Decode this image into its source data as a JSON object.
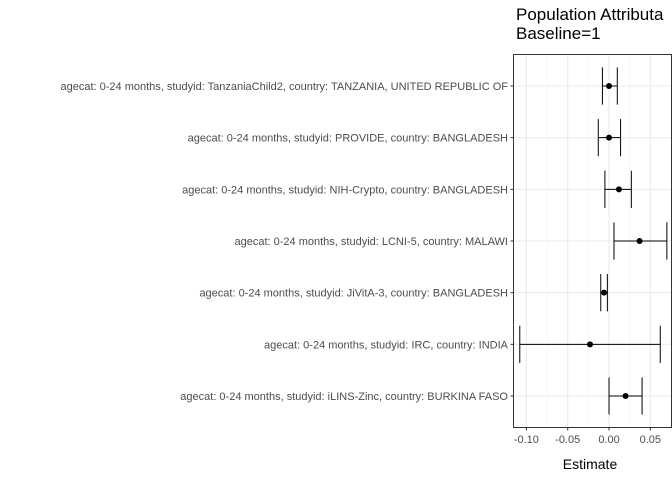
{
  "chart_data": {
    "type": "forest",
    "title": [
      "Population Attributa",
      "Baseline=1"
    ],
    "xlabel": "Estimate",
    "ylabel": "",
    "xlim": [
      -0.115,
      0.075
    ],
    "xticks": [
      -0.1,
      -0.05,
      0.0,
      0.05
    ],
    "xtick_labels": [
      "-0.10",
      "-0.05",
      "0.00",
      "0.05"
    ],
    "grid": true,
    "categories": [
      "agecat: 0-24 months, studyid: TanzaniaChild2, country: TANZANIA, UNITED REPUBLIC OF",
      "agecat: 0-24 months, studyid: PROVIDE, country: BANGLADESH",
      "agecat: 0-24 months, studyid: NIH-Crypto, country: BANGLADESH",
      "agecat: 0-24 months, studyid: LCNI-5, country: MALAWI",
      "agecat: 0-24 months, studyid: JiVitA-3, country: BANGLADESH",
      "agecat: 0-24 months, studyid: IRC, country: INDIA",
      "agecat: 0-24 months, studyid: iLINS-Zinc, country: BURKINA FASO"
    ],
    "estimate": [
      0.0,
      0.0,
      0.012,
      0.037,
      -0.006,
      -0.023,
      0.02
    ],
    "lower": [
      -0.008,
      -0.013,
      -0.005,
      0.006,
      -0.01,
      -0.108,
      0.0
    ],
    "upper": [
      0.01,
      0.014,
      0.027,
      0.07,
      -0.002,
      0.062,
      0.04
    ]
  }
}
